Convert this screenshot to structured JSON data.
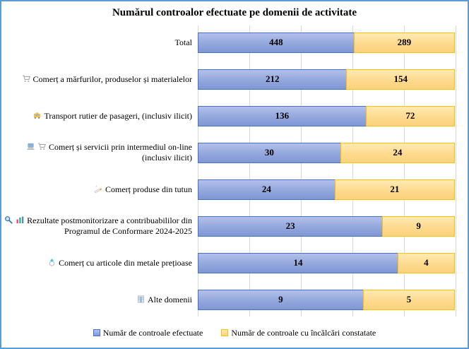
{
  "title": "Numărul controalor efectuate pe domenii de activitate",
  "colors": {
    "frame_border": "#5B9BD5",
    "series1_border": "#4472C4",
    "series1_fill": "#93A7DC",
    "series2_border": "#FFC000",
    "series2_fill": "#FDDA8D",
    "gridline": "#D9D9D9",
    "text": "#000000"
  },
  "chart_data": {
    "type": "bar",
    "orientation": "horizontal",
    "stacking": "percent",
    "title": "Numărul controalor efectuate pe domenii de activitate",
    "categories": [
      "Total",
      "Comerț a mărfurilor, produselor și materialelor",
      "Transport rutier de pasageri, (inclusiv ilicit)",
      "Comerț și servicii prin intermediul on-line (inclusiv ilicit)",
      "Comerț produse din tutun",
      "Rezultate postmonitorizare a contribuabililor din Programul de Conformare 2024-2025",
      "Comerț cu articole din metale prețioase",
      "Alte domenii"
    ],
    "category_icons": [
      [],
      [
        "cart-icon"
      ],
      [
        "taxi-icon"
      ],
      [
        "laptop-icon",
        "cart-icon"
      ],
      [
        "cigarette-icon"
      ],
      [
        "magnifier-icon",
        "barchart-icon"
      ],
      [
        "ring-icon"
      ],
      [
        "building-icon"
      ]
    ],
    "series": [
      {
        "name": "Număr de controale efectuate",
        "color": "#4472C4",
        "values": [
          448,
          212,
          136,
          30,
          24,
          23,
          14,
          9
        ]
      },
      {
        "name": "Număr de controale cu încălcări constatate",
        "color": "#FFC000",
        "values": [
          289,
          154,
          72,
          24,
          21,
          9,
          4,
          5
        ]
      }
    ],
    "xlim": [
      0,
      100
    ],
    "grid": {
      "axis": "x",
      "interval_percent": 20,
      "visible": true
    },
    "legend_position": "bottom",
    "data_labels": "inside-center"
  },
  "legend": {
    "items": [
      {
        "label": "Număr de controale efectuate",
        "color": "#4472C4"
      },
      {
        "label": "Număr de controale cu încălcări constatate",
        "color": "#FFC000"
      }
    ]
  }
}
